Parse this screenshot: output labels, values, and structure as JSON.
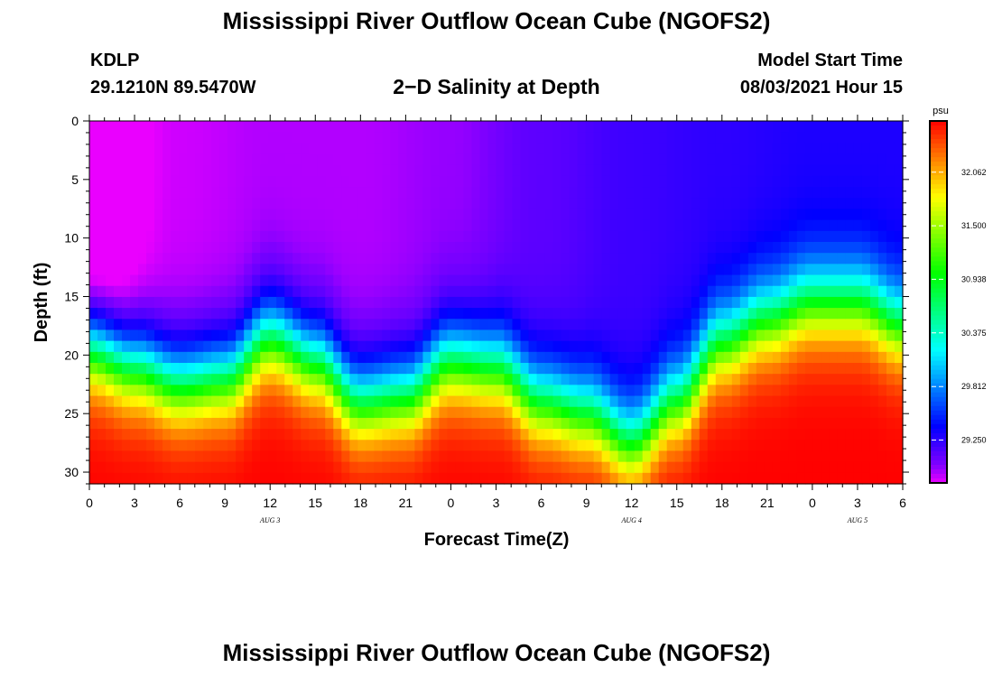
{
  "header": {
    "title": "Mississippi River Outflow Ocean Cube (NGOFS2)",
    "station": "KDLP",
    "coords": "29.1210N  89.5470W",
    "subtitle": "2−D Salinity at Depth",
    "model_start_label": "Model Start Time",
    "model_start_value": "08/03/2021 Hour 15"
  },
  "footer": {
    "title": "Mississippi River Outflow Ocean Cube (NGOFS2)"
  },
  "chart_data": {
    "type": "heatmap",
    "title": "2−D Salinity at Depth",
    "xlabel": "Forecast Time(Z)",
    "ylabel": "Depth (ft)",
    "x_range_hours": [
      0,
      54
    ],
    "x_tick_labels": [
      "0",
      "3",
      "6",
      "9",
      "12",
      "15",
      "18",
      "21",
      "0",
      "3",
      "6",
      "9",
      "12",
      "15",
      "18",
      "21",
      "0",
      "3",
      "6"
    ],
    "date_labels": [
      {
        "label": "AUG 3",
        "hour": 12
      },
      {
        "label": "AUG 4",
        "hour": 36
      },
      {
        "label": "AUG 5",
        "hour": 51
      }
    ],
    "ylim": [
      0,
      31
    ],
    "y_inverted": true,
    "y_tick_labels": [
      "0",
      "5",
      "10",
      "15",
      "20",
      "25",
      "30"
    ],
    "colorbar": {
      "unit": "psu",
      "range": [
        28.8,
        32.6
      ],
      "tick_labels": [
        "32.062",
        "31.500",
        "30.938",
        "30.375",
        "29.812",
        "29.250"
      ],
      "tick_values": [
        32.062,
        31.5,
        30.938,
        30.375,
        29.812,
        29.25
      ]
    },
    "halocline_depth_ft": {
      "hours": [
        0,
        3,
        6,
        9,
        12,
        15,
        18,
        21,
        24,
        27,
        30,
        33,
        36,
        39,
        42,
        45,
        48,
        51,
        54
      ],
      "values": [
        19.5,
        21.0,
        22.5,
        22.0,
        18.5,
        20.5,
        24.0,
        23.5,
        20.5,
        21.0,
        24.0,
        25.0,
        27.5,
        24.0,
        19.0,
        17.0,
        15.5,
        15.5,
        17.5
      ]
    },
    "surface_salinity_psu": {
      "hours": [
        0,
        6,
        12,
        18,
        24,
        30,
        36,
        42,
        48,
        54
      ],
      "values": [
        28.6,
        28.85,
        28.9,
        28.9,
        28.95,
        29.1,
        29.2,
        29.25,
        29.3,
        29.3
      ]
    },
    "bottom_salinity_psu": 32.6
  }
}
